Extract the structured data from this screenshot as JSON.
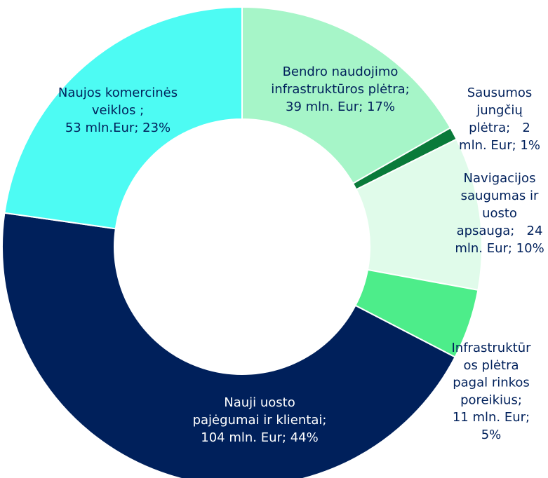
{
  "chart_data": {
    "type": "donut",
    "values": [
      39,
      2,
      24,
      11,
      104,
      53
    ],
    "value_labels": [
      [
        "Bendro naudojimo",
        "infrastruktūros plėtra;",
        "39 mln. Eur; 17%"
      ],
      [
        "Sausumos",
        "jungčių",
        "plėtra;   2",
        "mln. Eur; 1%"
      ],
      [
        "Navigacijos",
        "saugumas ir",
        "uosto",
        "apsauga;   24",
        "mln. Eur; 10%"
      ],
      [
        "Infrastruktūr",
        "os plėtra",
        "pagal rinkos",
        "poreikius;",
        "11 mln. Eur;",
        "5%"
      ],
      [
        "Nauji uosto",
        "pajėgumai ir klientai;",
        "104 mln. Eur; 44%"
      ],
      [
        "Naujos komercinės",
        "veiklos ;",
        "53 mln.Eur; 23%"
      ]
    ],
    "colors": [
      "#a6f5c8",
      "#0a7a3a",
      "#e0fbea",
      "#4ded8a",
      "#00205b",
      "#4dfbf3"
    ],
    "label_colors": [
      "#00205b",
      "#00205b",
      "#00205b",
      "#00205b",
      "#ffffff",
      "#00205b"
    ]
  }
}
